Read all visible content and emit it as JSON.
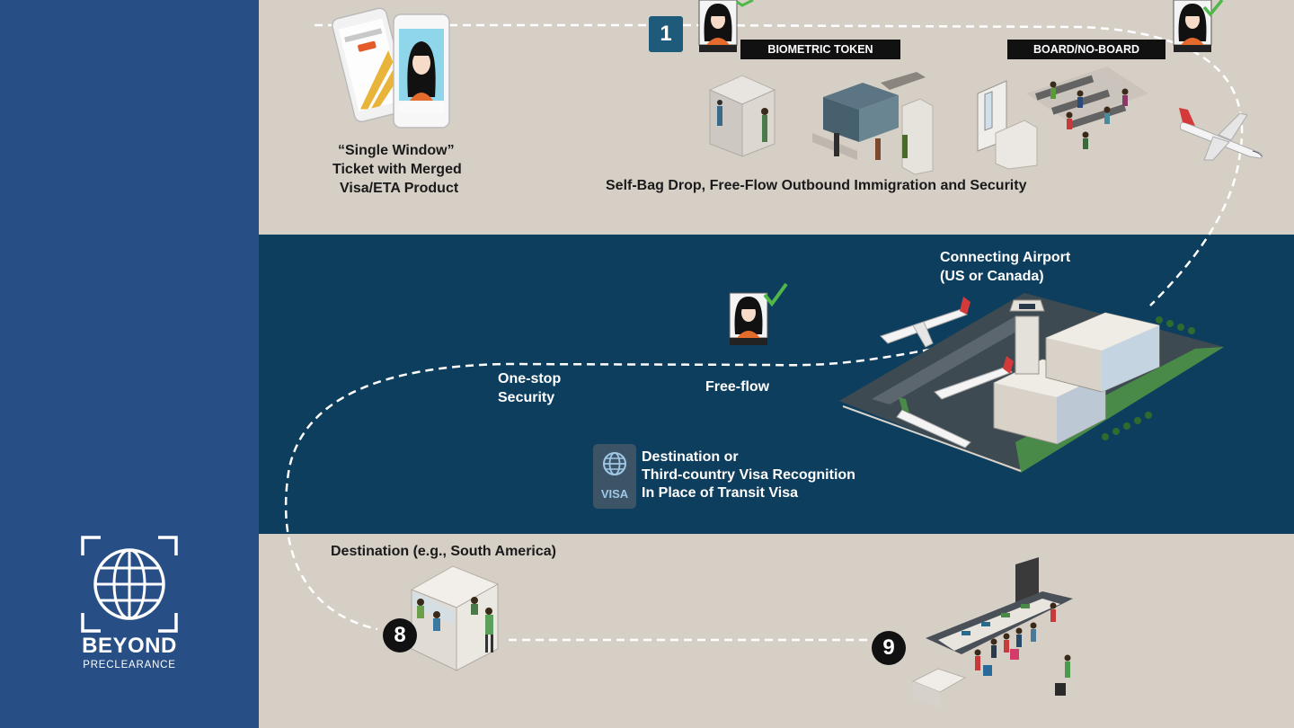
{
  "brand": {
    "name": "BEYOND",
    "subtitle": "PRECLEARANCE"
  },
  "steps": {
    "first": "1",
    "eighth": "8",
    "ninth": "9"
  },
  "tags": {
    "biometric_token": "BIOMETRIC TOKEN",
    "board_no_board": "BOARD/NO-BOARD"
  },
  "labels": {
    "single_window_1": "“Single Window”",
    "single_window_2": "Ticket with Merged",
    "single_window_3": "Visa/ETA Product",
    "departure_process": "Self-Bag Drop, Free-Flow Outbound Immigration and Security",
    "connecting_airport_1": "Connecting Airport",
    "connecting_airport_2": "(US or Canada)",
    "one_stop_1": "One-stop",
    "one_stop_2": "Security",
    "free_flow": "Free-flow",
    "visa_rec_1": "Destination or",
    "visa_rec_2": "Third-country Visa Recognition",
    "visa_rec_3": "In Place of Transit Visa",
    "visa_badge": "VISA",
    "destination": "Destination (e.g., South America)"
  },
  "colors": {
    "sidebar": "#274f86",
    "band_light": "#d6cfc6",
    "band_dark": "#0e3e5e",
    "check_green": "#4fb848",
    "step_blue": "#1e5a7a"
  },
  "icons": [
    "globe-icon",
    "smartphone-icon",
    "face-id-icon",
    "check-icon",
    "airplane-icon",
    "airport-icon",
    "kiosk-icon",
    "security-gate-icon",
    "gate-lounge-icon",
    "baggage-carousel-icon",
    "immigration-booth-icon",
    "visa-globe-icon"
  ]
}
